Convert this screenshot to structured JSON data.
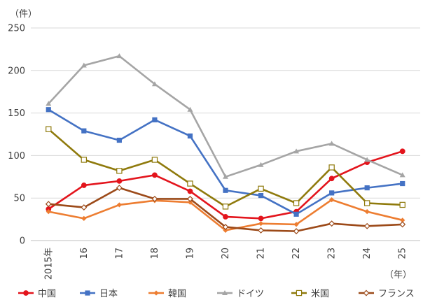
{
  "chart_data": {
    "type": "line",
    "y_unit_label": "（件）",
    "x_unit_label": "（年）",
    "categories": [
      "2015年",
      "16",
      "17",
      "18",
      "19",
      "20",
      "21",
      "22",
      "23",
      "24",
      "25"
    ],
    "ylim": [
      0,
      250
    ],
    "yticks": [
      0,
      50,
      100,
      150,
      200,
      250
    ],
    "grid": "horizontal",
    "legend_position": "bottom",
    "series": [
      {
        "name": "中国",
        "color": "#e3141c",
        "marker": "circle",
        "values": [
          37,
          65,
          70,
          77,
          58,
          28,
          26,
          34,
          73,
          92,
          105
        ]
      },
      {
        "name": "日本",
        "color": "#4472c4",
        "marker": "square",
        "values": [
          154,
          129,
          118,
          142,
          123,
          59,
          53,
          31,
          56,
          62,
          67
        ]
      },
      {
        "name": "韓国",
        "color": "#ed7d31",
        "marker": "diamond",
        "values": [
          34,
          26,
          42,
          47,
          45,
          12,
          20,
          19,
          48,
          34,
          24
        ]
      },
      {
        "name": "ドイツ",
        "color": "#a5a5a5",
        "marker": "triangle",
        "values": [
          161,
          206,
          217,
          184,
          154,
          75,
          89,
          105,
          114,
          95,
          77
        ]
      },
      {
        "name": "米国",
        "color": "#8f7a0c",
        "marker": "square-open",
        "values": [
          131,
          95,
          82,
          95,
          67,
          40,
          61,
          44,
          86,
          44,
          42
        ]
      },
      {
        "name": "フランス",
        "color": "#9c4a19",
        "marker": "diamond-open",
        "values": [
          43,
          39,
          62,
          49,
          49,
          16,
          12,
          11,
          20,
          17,
          19
        ]
      }
    ]
  }
}
